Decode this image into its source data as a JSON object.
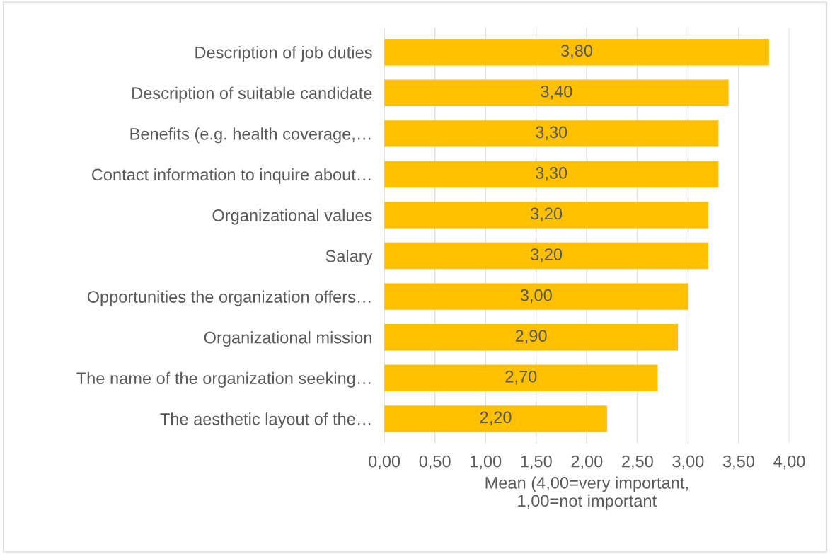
{
  "chart_data": {
    "type": "bar",
    "orientation": "horizontal",
    "xlabel": "Mean (4,00=very important,\n1,00=not important",
    "categories": [
      "Description of job duties",
      "Description of suitable candidate",
      "Benefits (e.g. health coverage,…",
      "Contact information to inquire about…",
      "Organizational values",
      "Salary",
      "Opportunities the organization offers…",
      "Organizational mission",
      "The name of the organization seeking…",
      "The aesthetic layout of the…"
    ],
    "values": [
      3.8,
      3.4,
      3.3,
      3.3,
      3.2,
      3.2,
      3.0,
      2.9,
      2.7,
      2.2
    ],
    "value_labels": [
      "3,80",
      "3,40",
      "3,30",
      "3,30",
      "3,20",
      "3,20",
      "3,00",
      "2,90",
      "2,70",
      "2,20"
    ],
    "color": "#ffc000",
    "xlim": [
      0,
      4
    ],
    "xticks": [
      {
        "value": 0,
        "label": "0,00"
      },
      {
        "value": 0.5,
        "label": "0,50"
      },
      {
        "value": 1,
        "label": "1,00"
      },
      {
        "value": 1.5,
        "label": "1,50"
      },
      {
        "value": 2,
        "label": "2,00"
      },
      {
        "value": 2.5,
        "label": "2,50"
      },
      {
        "value": 3,
        "label": "3,00"
      },
      {
        "value": 3.5,
        "label": "3,50"
      },
      {
        "value": 4,
        "label": "4,00"
      }
    ],
    "grid": "x",
    "legend": false
  }
}
